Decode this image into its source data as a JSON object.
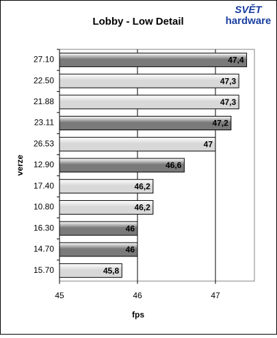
{
  "chart_data": {
    "type": "hbar",
    "title": "Lobby - Low Detail",
    "x_label": "fps",
    "y_label": "verze",
    "categories": [
      "27.10",
      "22.50",
      "21.88",
      "23.11",
      "26.53",
      "12.90",
      "17.40",
      "10.80",
      "16.30",
      "14.70",
      "15.70"
    ],
    "values": [
      47.4,
      47.3,
      47.3,
      47.2,
      47,
      46.6,
      46.2,
      46.2,
      46,
      46,
      45.8
    ],
    "value_labels": [
      "47,4",
      "47,3",
      "47,3",
      "47,2",
      "47",
      "46,6",
      "46,2",
      "46,2",
      "46",
      "46",
      "45,8"
    ],
    "colors": [
      "#7a7a7a",
      "#d8d8d8",
      "#d8d8d8",
      "#7a7a7a",
      "#d8d8d8",
      "#7a7a7a",
      "#d8d8d8",
      "#d8d8d8",
      "#7a7a7a",
      "#7a7a7a",
      "#d8d8d8"
    ],
    "xlim": [
      45,
      47.5
    ],
    "xticks": [
      45,
      46,
      47
    ],
    "grid": true
  },
  "logo": {
    "line1": "SVĚT",
    "line2": "hardware"
  }
}
